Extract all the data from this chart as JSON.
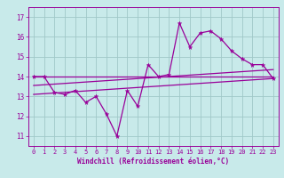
{
  "xlabel": "Windchill (Refroidissement éolien,°C)",
  "background_color": "#c8eaea",
  "grid_color": "#a0c8c8",
  "line_color": "#990099",
  "x_ticks": [
    0,
    1,
    2,
    3,
    4,
    5,
    6,
    7,
    8,
    9,
    10,
    11,
    12,
    13,
    14,
    15,
    16,
    17,
    18,
    19,
    20,
    21,
    22,
    23
  ],
  "y_ticks": [
    11,
    12,
    13,
    14,
    15,
    16,
    17
  ],
  "ylim": [
    10.5,
    17.5
  ],
  "xlim": [
    -0.5,
    23.5
  ],
  "series1": [
    14.0,
    14.0,
    13.2,
    13.1,
    13.3,
    12.7,
    13.0,
    12.1,
    11.0,
    13.3,
    12.5,
    14.6,
    14.0,
    14.1,
    16.7,
    15.5,
    16.2,
    16.3,
    15.9,
    15.3,
    14.9,
    14.6,
    14.6,
    13.9
  ],
  "trend1": [
    14.0,
    14.0
  ],
  "trend2": [
    13.55,
    14.35
  ],
  "trend3": [
    13.1,
    13.9
  ]
}
